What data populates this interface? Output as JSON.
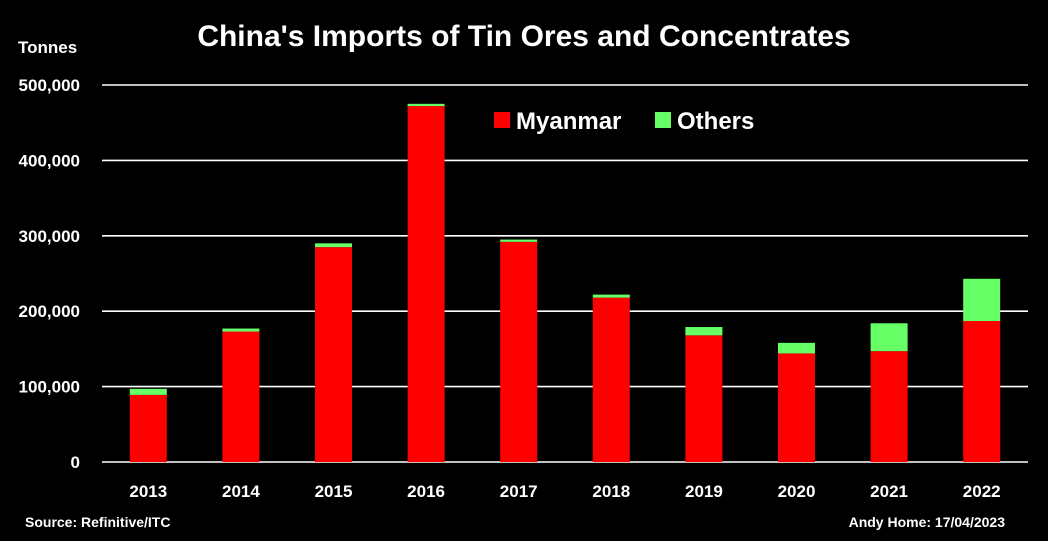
{
  "chart_data": {
    "type": "bar",
    "stacked": true,
    "title": "China's Imports of Tin Ores and Concentrates",
    "ylabel": "Tonnes",
    "xlabel": "",
    "categories": [
      "2013",
      "2014",
      "2015",
      "2016",
      "2017",
      "2018",
      "2019",
      "2020",
      "2021",
      "2022"
    ],
    "series": [
      {
        "name": "Myanmar",
        "color": "#ff0000",
        "values": [
          89000,
          173000,
          285000,
          472000,
          292000,
          218000,
          168000,
          144000,
          147000,
          187000
        ]
      },
      {
        "name": "Others",
        "color": "#66ff66",
        "values": [
          8000,
          4000,
          5000,
          3000,
          3000,
          4000,
          11000,
          14000,
          37000,
          56000
        ]
      }
    ],
    "ylim": [
      0,
      500000
    ],
    "yticks": [
      0,
      100000,
      200000,
      300000,
      400000,
      500000
    ],
    "ytick_labels": [
      "0",
      "100,000",
      "200,000",
      "300,000",
      "400,000",
      "500,000"
    ],
    "grid": true,
    "legend_position": "top-center",
    "gridline_color": "#ffffff",
    "background_color": "#000000"
  },
  "footer": {
    "source": "Source: Refinitive/ITC",
    "credit": "Andy Home: 17/04/2023"
  }
}
